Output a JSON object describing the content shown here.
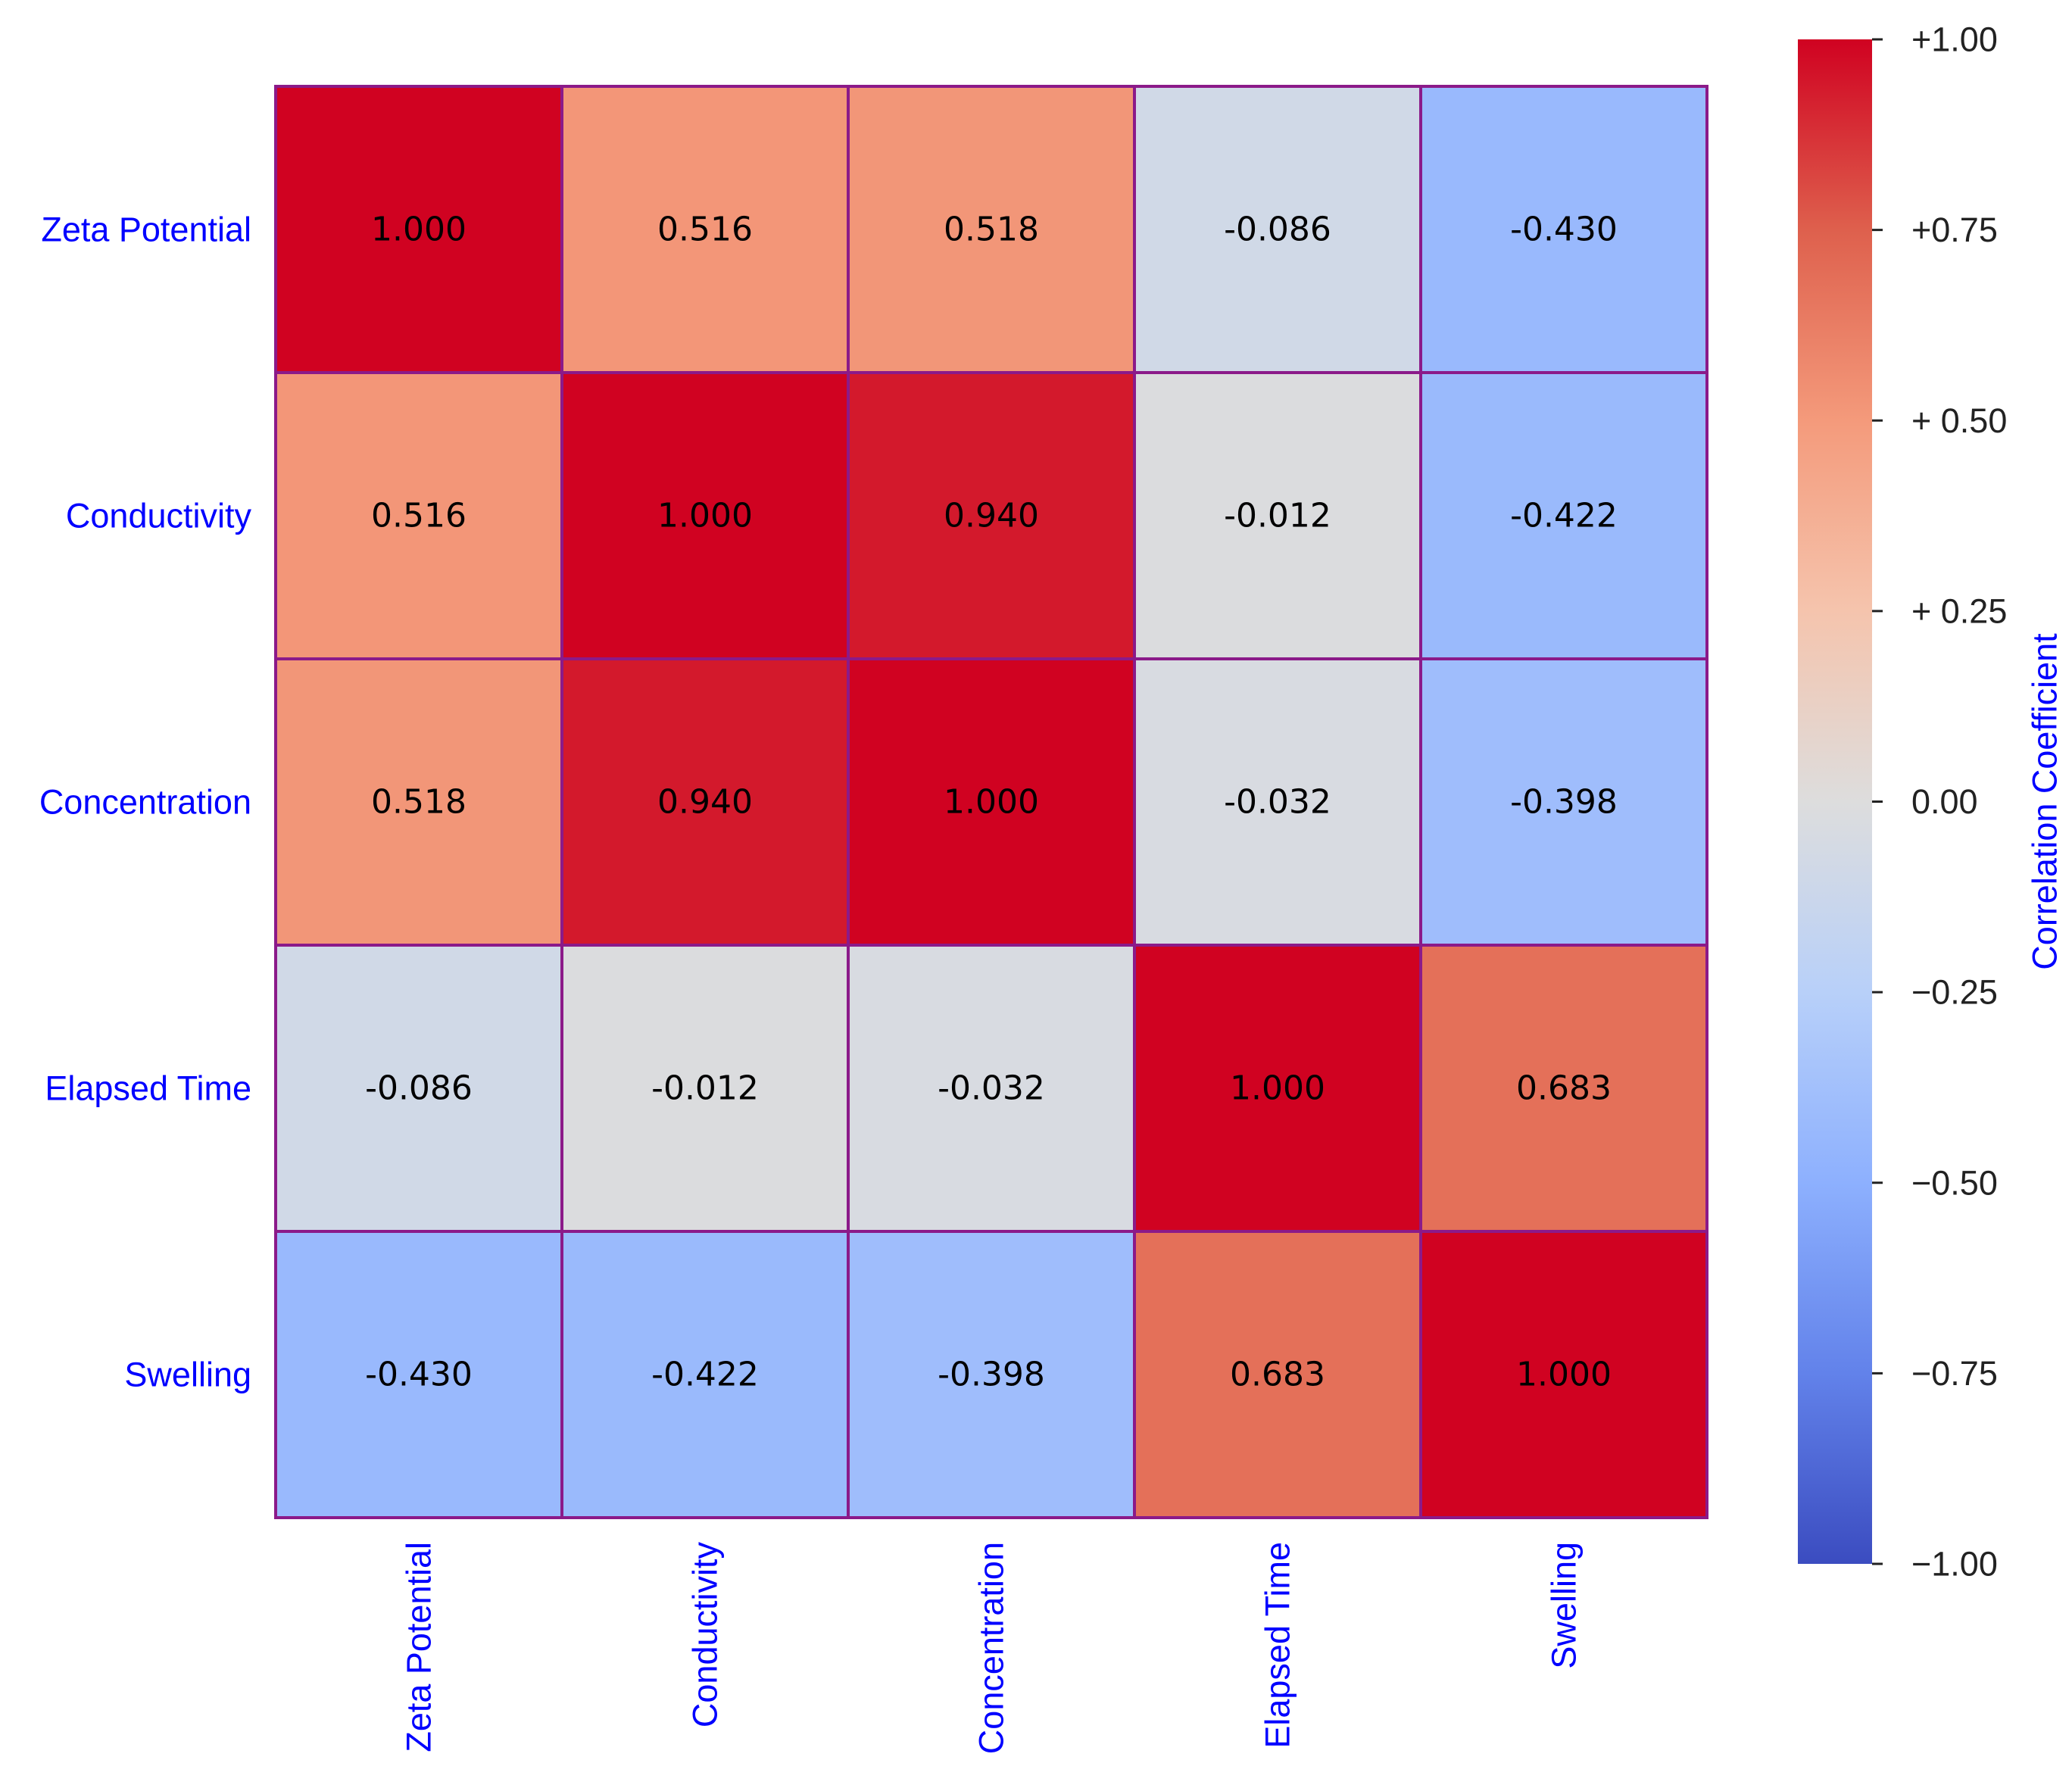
{
  "chart_data": {
    "type": "heatmap",
    "title": "",
    "row_labels": [
      "Zeta Potential",
      "Conductivity",
      "Concentration",
      "Elapsed Time",
      "Swelling"
    ],
    "col_labels": [
      "Zeta Potential",
      "Conductivity",
      "Concentration",
      "Elapsed Time",
      "Swelling"
    ],
    "values": [
      [
        1.0,
        0.516,
        0.518,
        -0.086,
        -0.43
      ],
      [
        0.516,
        1.0,
        0.94,
        -0.012,
        -0.422
      ],
      [
        0.518,
        0.94,
        1.0,
        -0.032,
        -0.398
      ],
      [
        -0.086,
        -0.012,
        -0.032,
        1.0,
        0.683
      ],
      [
        -0.43,
        -0.422,
        -0.398,
        0.683,
        1.0
      ]
    ],
    "cell_labels": [
      [
        "1.000",
        "0.516",
        "0.518",
        "-0.086",
        "-0.430"
      ],
      [
        "0.516",
        "1.000",
        "0.940",
        "-0.012",
        "-0.422"
      ],
      [
        "0.518",
        "0.940",
        "1.000",
        "-0.032",
        "-0.398"
      ],
      [
        "-0.086",
        "-0.012",
        "-0.032",
        "1.000",
        "0.683"
      ],
      [
        "-0.430",
        "-0.422",
        "-0.398",
        "0.683",
        "1.000"
      ]
    ],
    "colormap": "coolwarm",
    "vmin": -1.0,
    "vmax": 1.0,
    "cell_edge_color": "#8b1a89",
    "label_color": "#0000ff",
    "colorbar": {
      "label": "Correlation Coefficient",
      "ticks": [
        1.0,
        0.75,
        0.5,
        0.25,
        0.0,
        -0.25,
        -0.5,
        -0.75,
        -1.0
      ],
      "tick_labels": [
        "+1.00",
        "+0.75",
        "+ 0.50",
        "+ 0.25",
        "0.00",
        "−0.25",
        "−0.50",
        "−0.75",
        "−1.00"
      ]
    }
  }
}
